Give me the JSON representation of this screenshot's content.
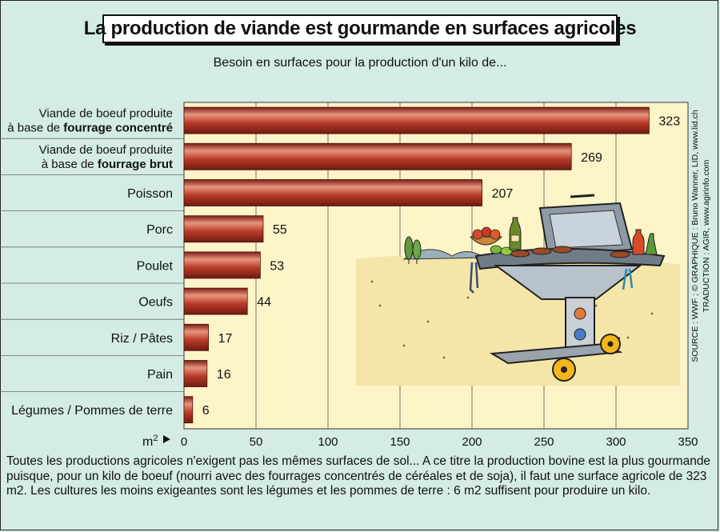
{
  "title": "La production de viande est gourmande en surfaces agricoles",
  "subtitle": "Besoin en surfaces pour la production d'un kilo de...",
  "x_unit": "m",
  "x_unit_sup": "2",
  "source_line1": "SOURCE : WWF ;  © GRAPHIQUE : Bruno Wanner, LID, www.lid.ch",
  "source_line2": "TRADUCTION : AGIR, www.agirinfo.com",
  "caption": "Toutes les productions agricoles n'exigent pas les mêmes surfaces de sol... A ce titre la production bovine est la plus gourmande puisque, pour un kilo de boeuf (nourri avec des fourrages concentrés de céréales et de soja), il faut une surface agricole de 323 m2. Les cultures les moins exigeantes sont les légumes et les pommes de terre : 6 m2 suffisent pour produire un kilo.",
  "colors": {
    "bar": "#b83a28",
    "bar_highlight": "#e8957e",
    "plot_bg": "#fdf4c8",
    "page_bg": "#d4ece4"
  },
  "chart_data": {
    "type": "bar",
    "orientation": "horizontal",
    "title": "La production de viande est gourmande en surfaces agricoles",
    "subtitle": "Besoin en surfaces pour la production d'un kilo de...",
    "xlabel": "m2",
    "xlim": [
      0,
      350
    ],
    "xticks": [
      0,
      50,
      100,
      150,
      200,
      250,
      300,
      350
    ],
    "grid": true,
    "categories": [
      {
        "line1": "Viande de boeuf produite",
        "line2_prefix": "à base de ",
        "line2_bold": "fourrage concentré"
      },
      {
        "line1": "Viande de boeuf produite",
        "line2_prefix": "à base de ",
        "line2_bold": "fourrage brut"
      },
      {
        "line1": "Poisson"
      },
      {
        "line1": "Porc"
      },
      {
        "line1": "Poulet"
      },
      {
        "line1": "Oeufs"
      },
      {
        "line1": "Riz / Pâtes"
      },
      {
        "line1": "Pain"
      },
      {
        "line1": "Légumes / Pommes de terre"
      }
    ],
    "values": [
      323,
      269,
      207,
      55,
      53,
      44,
      17,
      16,
      6
    ]
  }
}
